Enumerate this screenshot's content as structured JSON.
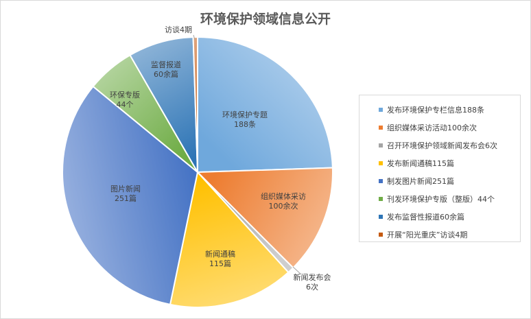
{
  "chart_data": {
    "type": "pie",
    "title": "环境保护领域信息公开",
    "values": [
      188,
      100,
      6,
      115,
      251,
      44,
      60,
      4
    ],
    "colors": [
      "#6fa8dc",
      "#ed7d31",
      "#a5a5a5",
      "#ffc000",
      "#4472c4",
      "#70ad47",
      "#2e75b6",
      "#c55a11"
    ],
    "slice_labels": [
      {
        "name": "环境保护专题",
        "value": "188条"
      },
      {
        "name": "组织媒体采访",
        "value": "100余次"
      },
      {
        "name": "新闻发布会",
        "value": "6次"
      },
      {
        "name": "新闻通稿",
        "value": "115篇"
      },
      {
        "name": "图片新闻",
        "value": "251篇"
      },
      {
        "name": "环保专版",
        "value": "44个"
      },
      {
        "name": "监督报道",
        "value": "60余篇"
      },
      {
        "name": "访谈4期",
        "value": ""
      }
    ],
    "legend": [
      "发布环境保护专栏信息188条",
      "组织媒体采访活动100余次",
      "召开环境保护领域新闻发布会6次",
      "发布新闻通稿115篇",
      "制发图片新闻251篇",
      "刊发环境保护专版（整版）44个",
      "发布监督性报道60余篇",
      "开展“阳光重庆”访谈4期"
    ],
    "legend_position": "right"
  }
}
